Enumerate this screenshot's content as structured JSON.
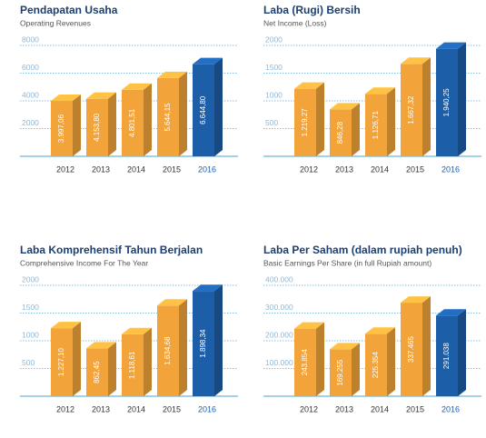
{
  "chart_data": [
    {
      "type": "bar3d",
      "title": "Pendapatan Usaha",
      "subtitle": "Operating Revenues",
      "categories": [
        "2012",
        "2013",
        "2014",
        "2015",
        "2016"
      ],
      "values": [
        3997.06,
        4153.8,
        4801.51,
        5644.15,
        6644.8
      ],
      "value_labels": [
        "3.997,06",
        "4.153,80",
        "4.801,51",
        "5.644,15",
        "6.644,80"
      ],
      "colors": [
        "#f2a43a",
        "#f2a43a",
        "#f2a43a",
        "#f2a43a",
        "#1d5ea8"
      ],
      "ylim": [
        0,
        8000
      ],
      "yticks": [
        2000,
        4000,
        6000,
        8000
      ],
      "grid": true
    },
    {
      "type": "bar3d",
      "title": "Laba (Rugi) Bersih",
      "subtitle": "Net Income (Loss)",
      "categories": [
        "2012",
        "2013",
        "2014",
        "2015",
        "2016"
      ],
      "values": [
        1219.27,
        846.28,
        1126.71,
        1667.32,
        1940.25
      ],
      "value_labels": [
        "1.219,27",
        "846,28",
        "1.126,71",
        "1.667,32",
        "1.940,25"
      ],
      "colors": [
        "#f2a43a",
        "#f2a43a",
        "#f2a43a",
        "#f2a43a",
        "#1d5ea8"
      ],
      "ylim": [
        0,
        2000
      ],
      "yticks": [
        500,
        1000,
        1500,
        2000
      ],
      "grid": true
    },
    {
      "type": "bar3d",
      "title": "Laba Komprehensif Tahun Berjalan",
      "subtitle": "Comprehensive Income For The Year",
      "categories": [
        "2012",
        "2013",
        "2014",
        "2015",
        "2016"
      ],
      "values": [
        1227.1,
        862.45,
        1118.61,
        1634.68,
        1898.34
      ],
      "value_labels": [
        "1.227,10",
        "862,45",
        "1.118,61",
        "1.634,68",
        "1.898,34"
      ],
      "colors": [
        "#f2a43a",
        "#f2a43a",
        "#f2a43a",
        "#f2a43a",
        "#1d5ea8"
      ],
      "ylim": [
        0,
        2000
      ],
      "yticks": [
        500,
        1000,
        1500,
        2000
      ],
      "grid": true
    },
    {
      "type": "bar3d",
      "title": "Laba Per Saham (dalam rupiah penuh)",
      "subtitle": "Basic Earnings Per Share (in full Rupiah amount)",
      "categories": [
        "2012",
        "2013",
        "2014",
        "2015",
        "2016"
      ],
      "values": [
        243854,
        169255,
        225354,
        337465,
        291038
      ],
      "value_labels": [
        "243.854",
        "169.255",
        "225.354",
        "337.465",
        "291.038"
      ],
      "colors": [
        "#f2a43a",
        "#f2a43a",
        "#f2a43a",
        "#f2a43a",
        "#1d5ea8"
      ],
      "ylim": [
        0,
        400000
      ],
      "yticks": [
        {
          "value": 100000,
          "label": "100.000"
        },
        {
          "value": 200000,
          "label": "200.000"
        },
        {
          "value": 300000,
          "label": "300.000"
        },
        {
          "value": 400000,
          "label": "400.000"
        }
      ],
      "grid": true
    }
  ]
}
